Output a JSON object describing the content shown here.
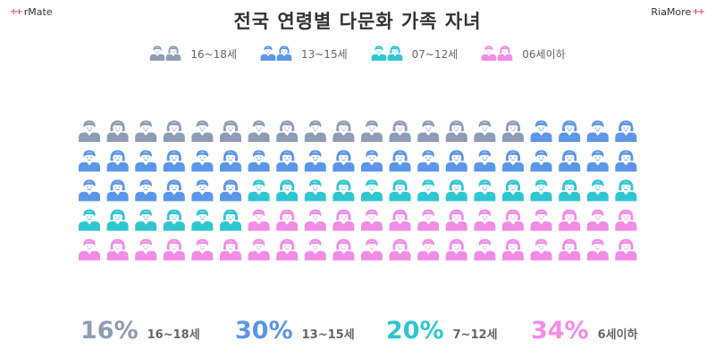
{
  "brand_left": "rMate",
  "brand_right": "RiaMore",
  "chart_data": {
    "type": "pictograph",
    "title": "전국 연령별 다문화 가족 자녀",
    "legend": [
      {
        "name": "16~18세",
        "color": "#8e9db5"
      },
      {
        "name": "13~15세",
        "color": "#5b96e8"
      },
      {
        "name": "07~12세",
        "color": "#2fc6d2"
      },
      {
        "name": "06세이하",
        "color": "#f28ce6"
      }
    ],
    "series": [
      {
        "name": "16~18세",
        "value": 16,
        "label": "16~18세",
        "percent_text": "16%"
      },
      {
        "name": "13~15세",
        "value": 30,
        "label": "13~15세",
        "percent_text": "30%"
      },
      {
        "name": "07~12세",
        "value": 20,
        "label": "7~12세",
        "percent_text": "20%"
      },
      {
        "name": "06세이하",
        "value": 34,
        "label": "6세이하",
        "percent_text": "34%"
      }
    ],
    "icons_per_row": 20,
    "rows": 5,
    "icon_pattern": "alternating male/female"
  }
}
